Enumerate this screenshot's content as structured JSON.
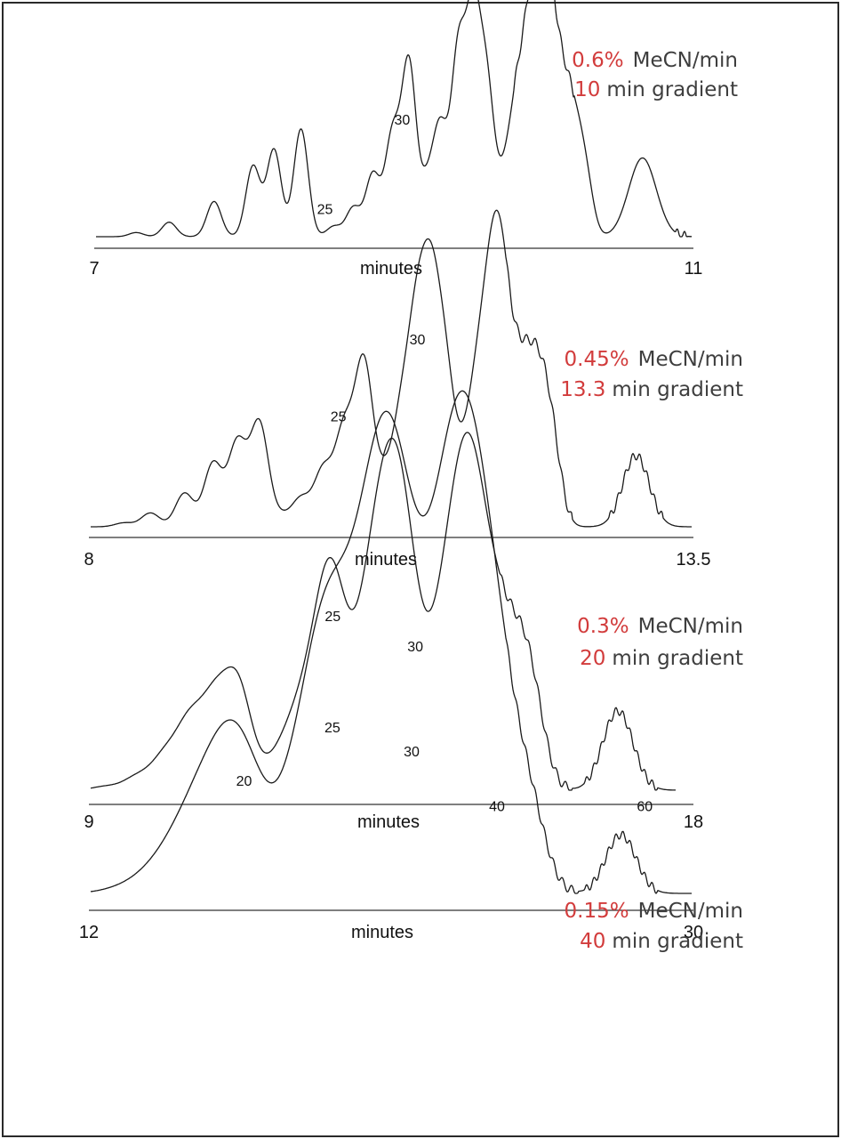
{
  "chart_data": [
    {
      "type": "line",
      "xlabel": "minutes",
      "xlim": [
        7,
        11
      ],
      "tick_labels": [
        "7",
        "11"
      ],
      "gradient_rate": "0.6%",
      "rate_unit": "MeCN/min",
      "gradient_time": "10",
      "time_unit": "min gradient",
      "peak_labels": [
        {
          "text": "25",
          "x": 8.54
        },
        {
          "text": "30",
          "x": 9.02
        }
      ],
      "series": [
        {
          "baseline": 0,
          "peaks": [
            {
              "x": 7.28,
              "h": 0.02,
              "w": 0.012
            },
            {
              "x": 7.5,
              "h": 0.07,
              "w": 0.012
            },
            {
              "x": 7.8,
              "h": 0.17,
              "w": 0.012
            },
            {
              "x": 8.06,
              "h": 0.34,
              "w": 0.012
            },
            {
              "x": 8.2,
              "h": 0.42,
              "w": 0.012
            },
            {
              "x": 8.38,
              "h": 0.52,
              "w": 0.012
            },
            {
              "x": 8.6,
              "h": 0.05,
              "w": 0.012
            },
            {
              "x": 8.73,
              "h": 0.14,
              "w": 0.012
            },
            {
              "x": 8.86,
              "h": 0.3,
              "w": 0.012
            },
            {
              "x": 8.99,
              "h": 0.48,
              "w": 0.012
            },
            {
              "x": 9.1,
              "h": 0.83,
              "w": 0.012
            },
            {
              "x": 9.22,
              "h": 0.23,
              "w": 0.012
            },
            {
              "x": 9.31,
              "h": 0.5,
              "w": 0.012
            },
            {
              "x": 9.43,
              "h": 0.86,
              "w": 0.012
            },
            {
              "x": 9.53,
              "h": 1.0,
              "w": 0.012
            },
            {
              "x": 9.62,
              "h": 0.68,
              "w": 0.012
            },
            {
              "x": 9.71,
              "h": 0.15,
              "w": 0.012
            },
            {
              "x": 9.78,
              "h": 0.33,
              "w": 0.012
            },
            {
              "x": 9.85,
              "h": 0.59,
              "w": 0.012
            },
            {
              "x": 9.93,
              "h": 0.84,
              "w": 0.012
            },
            {
              "x": 10.01,
              "h": 0.84,
              "w": 0.012
            },
            {
              "x": 10.07,
              "h": 0.4,
              "w": 0.012
            },
            {
              "x": 10.13,
              "h": 0.41,
              "w": 0.012
            },
            {
              "x": 10.19,
              "h": 0.34,
              "w": 0.012
            },
            {
              "x": 10.24,
              "h": 0.22,
              "w": 0.012
            },
            {
              "x": 10.29,
              "h": 0.2,
              "w": 0.012
            }
          ]
        }
      ]
    },
    {
      "type": "line",
      "xlabel": "minutes",
      "xlim": [
        8,
        13.5
      ],
      "tick_labels": [
        "8",
        "13.5"
      ],
      "gradient_rate": "0.45%",
      "rate_unit": "MeCN/min",
      "gradient_time": "13.3",
      "time_unit": "min gradient",
      "peak_labels": [
        {
          "text": "25",
          "x": 10.27
        },
        {
          "text": "30",
          "x": 10.94
        }
      ],
      "series": [
        {
          "baseline": 0,
          "peaks": [
            {
              "x": 8.32,
              "h": 0.02,
              "w": 0.015
            },
            {
              "x": 8.56,
              "h": 0.07,
              "w": 0.015
            },
            {
              "x": 8.87,
              "h": 0.17,
              "w": 0.015
            },
            {
              "x": 9.13,
              "h": 0.32,
              "w": 0.015
            },
            {
              "x": 9.35,
              "h": 0.42,
              "w": 0.015
            },
            {
              "x": 9.55,
              "h": 0.52,
              "w": 0.015
            },
            {
              "x": 9.75,
              "h": 0.05,
              "w": 0.015
            },
            {
              "x": 9.93,
              "h": 0.14,
              "w": 0.015
            },
            {
              "x": 10.13,
              "h": 0.28,
              "w": 0.015
            },
            {
              "x": 10.32,
              "h": 0.47,
              "w": 0.015
            },
            {
              "x": 10.5,
              "h": 0.81,
              "w": 0.015
            },
            {
              "x": 10.68,
              "h": 0.21,
              "w": 0.015
            },
            {
              "x": 10.84,
              "h": 0.49,
              "w": 0.015
            },
            {
              "x": 10.98,
              "h": 0.86,
              "w": 0.015
            },
            {
              "x": 11.11,
              "h": 1.0,
              "w": 0.015
            },
            {
              "x": 11.24,
              "h": 0.66,
              "w": 0.015
            },
            {
              "x": 11.35,
              "h": 0.14,
              "w": 0.015
            },
            {
              "x": 11.46,
              "h": 0.3,
              "w": 0.015
            },
            {
              "x": 11.56,
              "h": 0.55,
              "w": 0.015
            },
            {
              "x": 11.67,
              "h": 0.83,
              "w": 0.015
            },
            {
              "x": 11.76,
              "h": 0.83,
              "w": 0.015
            },
            {
              "x": 11.87,
              "h": 0.4,
              "w": 0.015
            },
            {
              "x": 11.96,
              "h": 0.4,
              "w": 0.015
            },
            {
              "x": 12.06,
              "h": 0.34,
              "w": 0.015
            },
            {
              "x": 12.15,
              "h": 0.22,
              "w": 0.015
            },
            {
              "x": 12.23,
              "h": 0.25,
              "w": 0.015
            }
          ]
        }
      ]
    },
    {
      "type": "line",
      "xlabel": "minutes",
      "xlim": [
        9,
        18
      ],
      "tick_labels": [
        "9",
        "18"
      ],
      "gradient_rate": "0.3%",
      "rate_unit": "MeCN/min",
      "gradient_time": "20",
      "time_unit": "min gradient",
      "peak_labels": [
        {
          "text": "25",
          "x": 12.63
        },
        {
          "text": "30",
          "x": 13.78
        }
      ],
      "series": [
        {
          "baseline": 0,
          "peaks": [
            {
              "x": 9.25,
              "h": 0.02,
              "w": 0.022
            },
            {
              "x": 9.72,
              "h": 0.07,
              "w": 0.022
            },
            {
              "x": 10.13,
              "h": 0.17,
              "w": 0.022
            },
            {
              "x": 10.5,
              "h": 0.33,
              "w": 0.022
            },
            {
              "x": 10.87,
              "h": 0.42,
              "w": 0.022
            },
            {
              "x": 11.22,
              "h": 0.52,
              "w": 0.022
            },
            {
              "x": 11.57,
              "h": 0.05,
              "w": 0.022
            },
            {
              "x": 11.86,
              "h": 0.15,
              "w": 0.022
            },
            {
              "x": 12.13,
              "h": 0.29,
              "w": 0.022
            },
            {
              "x": 12.4,
              "h": 0.47,
              "w": 0.022
            },
            {
              "x": 12.63,
              "h": 0.83,
              "w": 0.022
            },
            {
              "x": 12.87,
              "h": 0.23,
              "w": 0.022
            },
            {
              "x": 13.1,
              "h": 0.5,
              "w": 0.022
            },
            {
              "x": 13.33,
              "h": 0.85,
              "w": 0.022
            },
            {
              "x": 13.56,
              "h": 1.0,
              "w": 0.022
            },
            {
              "x": 13.78,
              "h": 0.67,
              "w": 0.022
            },
            {
              "x": 13.98,
              "h": 0.15,
              "w": 0.022
            },
            {
              "x": 14.16,
              "h": 0.32,
              "w": 0.022
            },
            {
              "x": 14.35,
              "h": 0.58,
              "w": 0.022
            },
            {
              "x": 14.55,
              "h": 0.82,
              "w": 0.022
            },
            {
              "x": 14.73,
              "h": 0.8,
              "w": 0.022
            },
            {
              "x": 14.9,
              "h": 0.42,
              "w": 0.022
            },
            {
              "x": 15.07,
              "h": 0.4,
              "w": 0.022
            },
            {
              "x": 15.23,
              "h": 0.32,
              "w": 0.022
            },
            {
              "x": 15.4,
              "h": 0.22,
              "w": 0.022
            },
            {
              "x": 15.57,
              "h": 0.23,
              "w": 0.022
            }
          ]
        }
      ]
    },
    {
      "type": "line",
      "xlabel": "minutes",
      "xlim": [
        12,
        30
      ],
      "tick_labels": [
        "12",
        "30"
      ],
      "gradient_rate": "0.15%",
      "rate_unit": "MeCN/min",
      "gradient_time": "40",
      "time_unit": "min gradient",
      "peak_labels": [
        {
          "text": "20",
          "x": 16.62
        },
        {
          "text": "25",
          "x": 19.25
        },
        {
          "text": "30",
          "x": 21.45
        },
        {
          "text": "40",
          "x": 24.15
        },
        {
          "text": "60",
          "x": 28.55
        }
      ],
      "series": [
        {
          "baseline": 0,
          "peaks": [
            {
              "x": 12.9,
              "h": 0.02,
              "w": 0.035
            },
            {
              "x": 13.78,
              "h": 0.07,
              "w": 0.035
            },
            {
              "x": 14.55,
              "h": 0.17,
              "w": 0.035
            },
            {
              "x": 15.28,
              "h": 0.32,
              "w": 0.035
            },
            {
              "x": 15.98,
              "h": 0.42,
              "w": 0.035
            },
            {
              "x": 16.62,
              "h": 0.52,
              "w": 0.035
            },
            {
              "x": 17.25,
              "h": 0.05,
              "w": 0.035
            },
            {
              "x": 17.82,
              "h": 0.15,
              "w": 0.035
            },
            {
              "x": 18.3,
              "h": 0.29,
              "w": 0.035
            },
            {
              "x": 18.78,
              "h": 0.48,
              "w": 0.035
            },
            {
              "x": 19.25,
              "h": 0.81,
              "w": 0.035
            },
            {
              "x": 19.72,
              "h": 0.22,
              "w": 0.035
            },
            {
              "x": 20.14,
              "h": 0.49,
              "w": 0.035
            },
            {
              "x": 20.56,
              "h": 0.86,
              "w": 0.035
            },
            {
              "x": 20.99,
              "h": 1.0,
              "w": 0.035
            },
            {
              "x": 21.43,
              "h": 0.68,
              "w": 0.035
            },
            {
              "x": 21.82,
              "h": 0.14,
              "w": 0.035
            },
            {
              "x": 22.18,
              "h": 0.32,
              "w": 0.035
            },
            {
              "x": 22.54,
              "h": 0.56,
              "w": 0.035
            },
            {
              "x": 22.9,
              "h": 0.82,
              "w": 0.035
            },
            {
              "x": 23.25,
              "h": 0.81,
              "w": 0.035
            },
            {
              "x": 23.55,
              "h": 0.41,
              "w": 0.035
            },
            {
              "x": 23.85,
              "h": 0.41,
              "w": 0.035
            },
            {
              "x": 24.12,
              "h": 0.33,
              "w": 0.035
            },
            {
              "x": 24.4,
              "h": 0.22,
              "w": 0.035
            },
            {
              "x": 24.68,
              "h": 0.22,
              "w": 0.035
            }
          ]
        }
      ]
    }
  ]
}
